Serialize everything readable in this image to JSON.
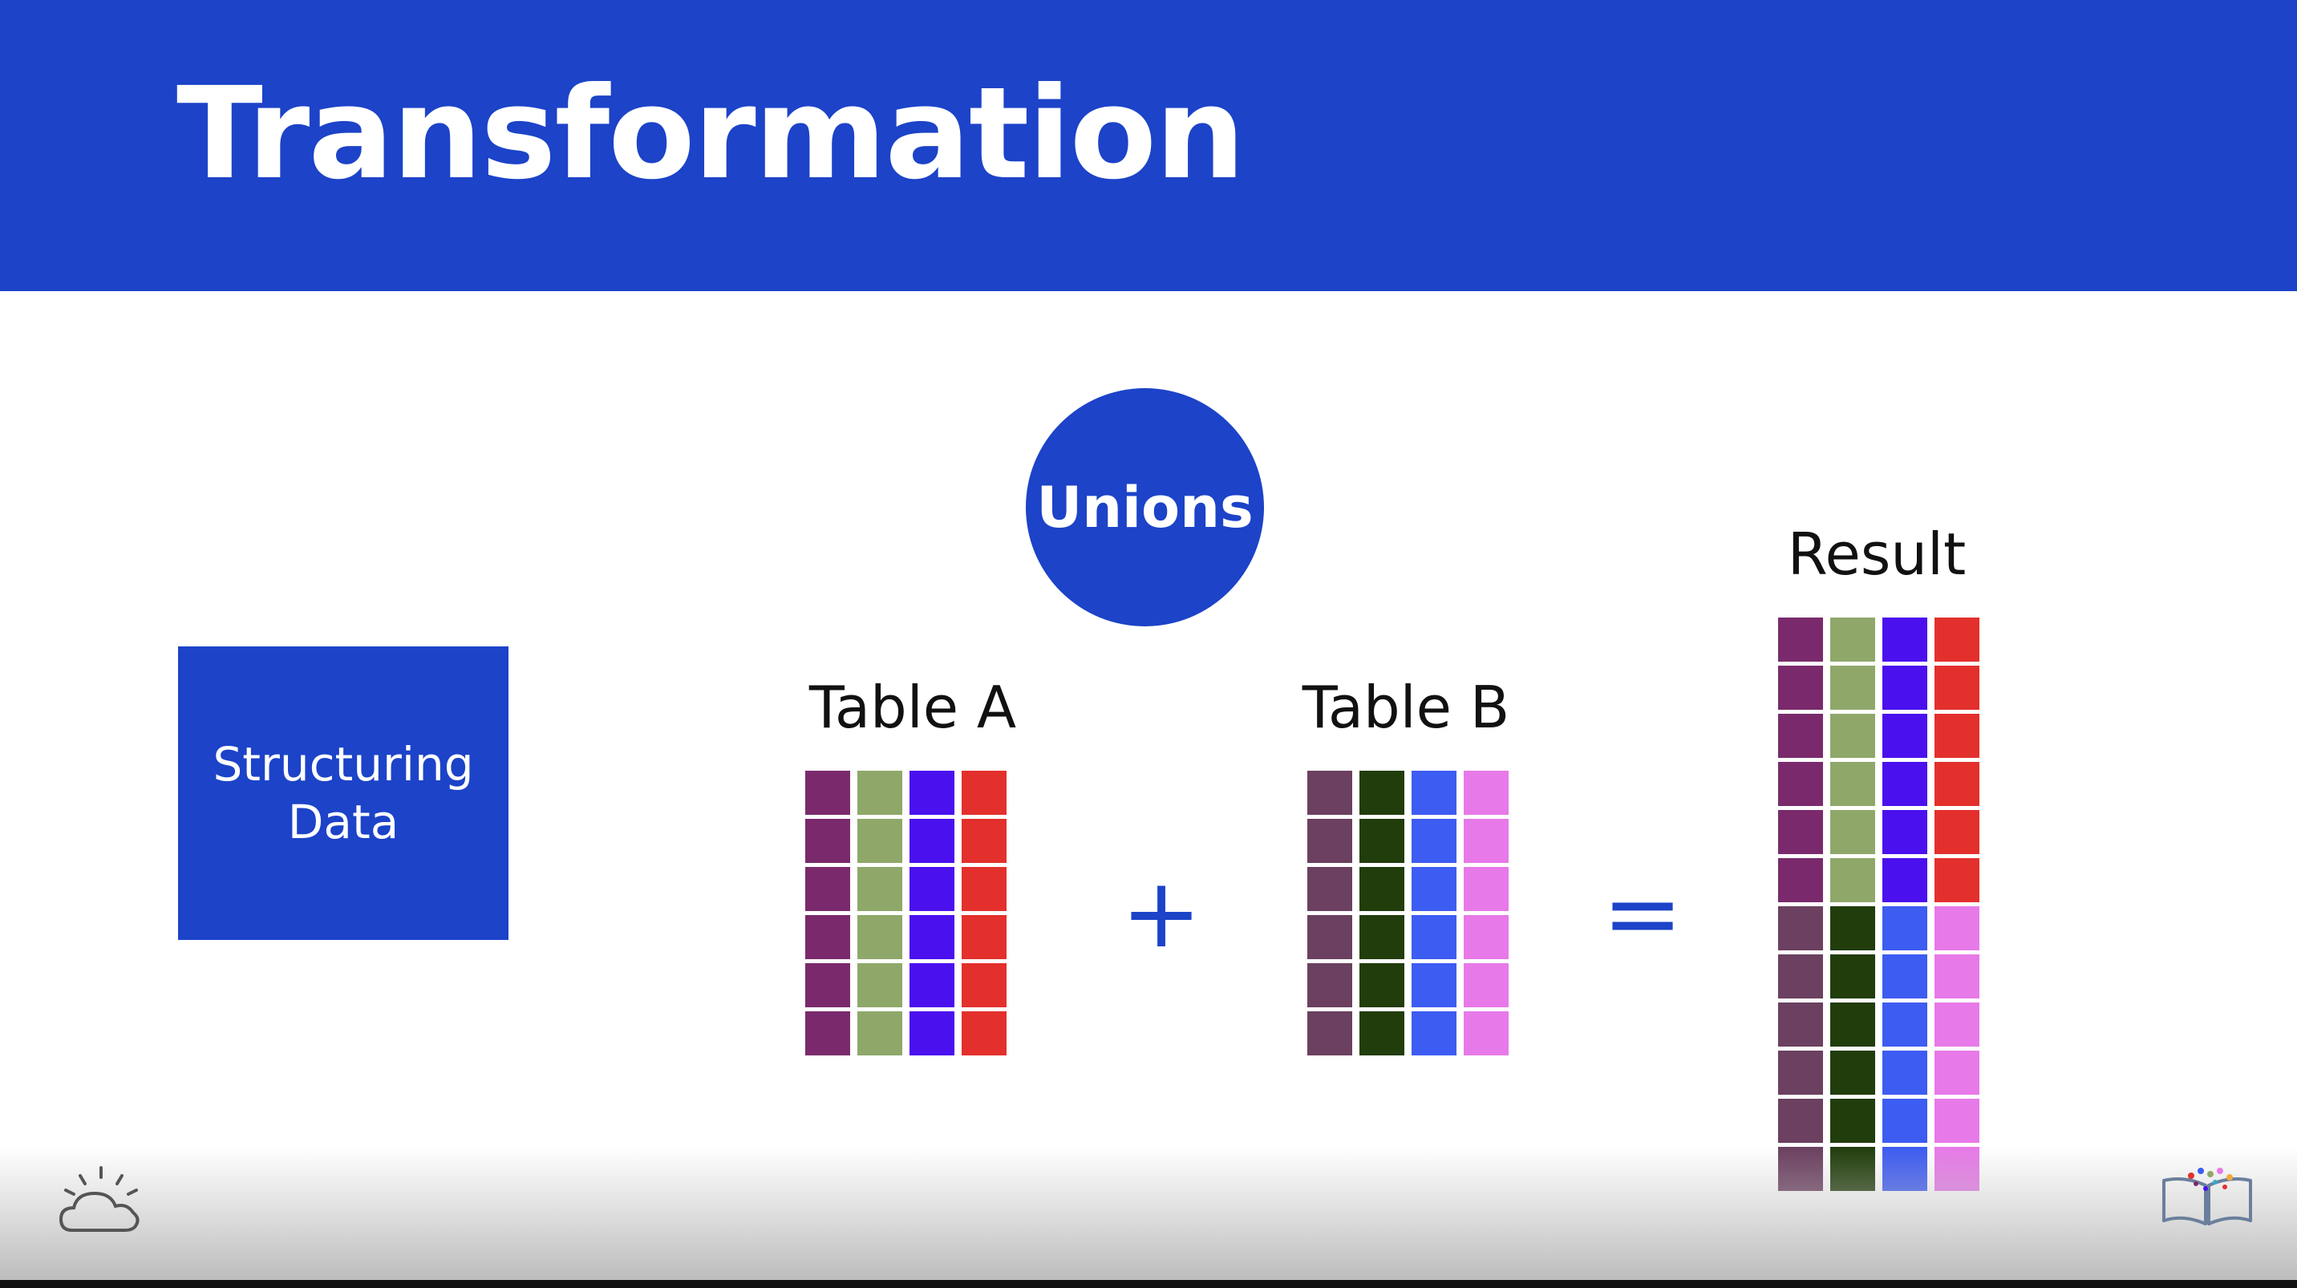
{
  "title": "Transformation",
  "sidebar_box": {
    "line1": "Structuring",
    "line2": "Data"
  },
  "badge": "Unions",
  "table_a": {
    "label": "Table A",
    "rows": 6,
    "colors": [
      "#7a2a6c",
      "#8fa86a",
      "#4a10ee",
      "#e3302c"
    ]
  },
  "table_b": {
    "label": "Table B",
    "rows": 6,
    "colors": [
      "#6b4060",
      "#213d0b",
      "#3d5cf2",
      "#e77ae8"
    ]
  },
  "result": {
    "label": "Result",
    "sections": [
      {
        "rows": 6,
        "colors": [
          "#7a2a6c",
          "#8fa86a",
          "#4a10ee",
          "#e3302c"
        ]
      },
      {
        "rows": 6,
        "colors": [
          "#6b4060",
          "#213d0b",
          "#3d5cf2",
          "#e77ae8"
        ]
      }
    ]
  },
  "operators": {
    "plus": "+",
    "equals": "="
  },
  "icons": {
    "bottom_left": "cloud-sun-icon",
    "bottom_right": "open-book-icon"
  },
  "accent_color": "#1c43c8"
}
